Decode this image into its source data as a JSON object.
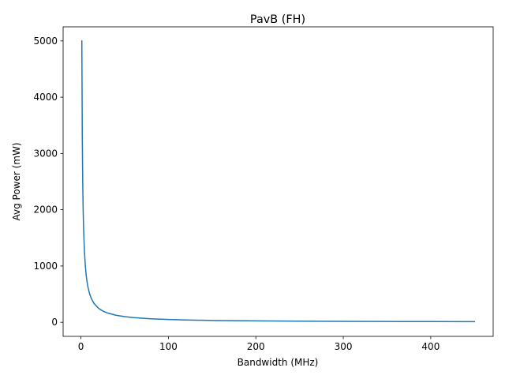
{
  "chart_data": {
    "type": "line",
    "title": "PavB (FH)",
    "xlabel": "Bandwidth (MHz)",
    "ylabel": "Avg Power (mW)",
    "xlim": [
      -20.4,
      471.4
    ],
    "ylim": [
      -250,
      5250
    ],
    "xticks": [
      0,
      100,
      200,
      300,
      400
    ],
    "yticks": [
      0,
      1000,
      2000,
      3000,
      4000,
      5000
    ],
    "grid": false,
    "series": [
      {
        "color": "#1f77b4",
        "x": [
          1,
          1.5,
          2,
          2.5,
          3,
          4,
          5,
          6,
          7,
          8,
          10,
          12,
          15,
          20,
          25,
          30,
          40,
          50,
          60,
          80,
          100,
          120,
          150,
          200,
          250,
          300,
          350,
          400,
          450
        ],
        "y": [
          5000,
          3333,
          2500,
          2000,
          1667,
          1250,
          1000,
          833,
          714,
          625,
          500,
          417,
          333,
          250,
          200,
          167,
          125,
          100,
          83,
          63,
          50,
          42,
          33,
          25,
          20,
          17,
          14,
          13,
          11
        ]
      }
    ]
  }
}
